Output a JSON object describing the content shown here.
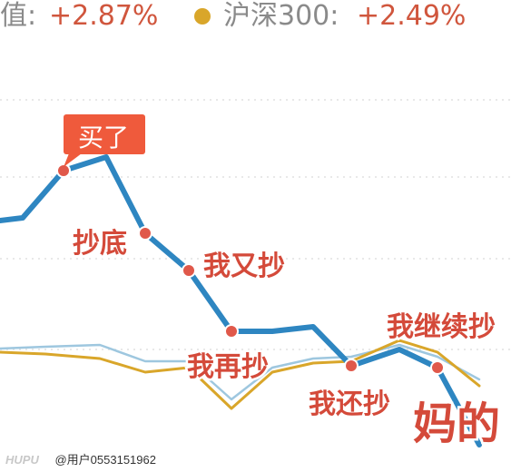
{
  "header": {
    "fund_label": "值:",
    "fund_value": "+2.87%",
    "index_label": "沪深300:",
    "index_value": "+2.49%"
  },
  "chart_data": {
    "type": "line",
    "title": "",
    "xlabel": "",
    "ylabel": "",
    "grid": true,
    "legend": "top",
    "series": [
      {
        "name": "",
        "color": "#2e86c1",
        "points": [
          [
            0,
            243
          ],
          [
            25,
            240
          ],
          [
            70,
            188
          ],
          [
            117,
            173
          ],
          [
            160,
            257
          ],
          [
            208,
            298
          ],
          [
            255,
            365
          ],
          [
            300,
            365
          ],
          [
            345,
            360
          ],
          [
            387,
            403
          ],
          [
            440,
            385
          ],
          [
            482,
            405
          ],
          [
            528,
            490
          ]
        ]
      },
      {
        "name": "沪深300",
        "color": "#d9a62a",
        "points": [
          [
            0,
            388
          ],
          [
            50,
            390
          ],
          [
            110,
            395
          ],
          [
            160,
            410
          ],
          [
            208,
            405
          ],
          [
            255,
            450
          ],
          [
            300,
            410
          ],
          [
            345,
            400
          ],
          [
            387,
            398
          ],
          [
            440,
            375
          ],
          [
            482,
            388
          ],
          [
            528,
            425
          ]
        ]
      },
      {
        "name": "",
        "color": "#9ec7df",
        "points": [
          [
            0,
            384
          ],
          [
            50,
            382
          ],
          [
            110,
            380
          ],
          [
            160,
            398
          ],
          [
            208,
            398
          ],
          [
            255,
            440
          ],
          [
            300,
            405
          ],
          [
            345,
            395
          ],
          [
            387,
            393
          ],
          [
            440,
            380
          ],
          [
            482,
            393
          ],
          [
            528,
            418
          ]
        ]
      }
    ],
    "annotations": [
      {
        "text": "买了",
        "at": [
          70,
          188
        ]
      },
      {
        "text": "抄底",
        "at": [
          160,
          257
        ]
      },
      {
        "text": "我又抄",
        "at": [
          208,
          298
        ]
      },
      {
        "text": "我再抄",
        "at": [
          255,
          365
        ]
      },
      {
        "text": "我还抄",
        "at": [
          387,
          403
        ]
      },
      {
        "text": "我继续抄",
        "at": [
          482,
          405
        ]
      },
      {
        "text": "妈的",
        "at": [
          528,
          490
        ]
      }
    ]
  },
  "watermark": {
    "logo": "HUPU",
    "user": "@用户0553151962"
  }
}
